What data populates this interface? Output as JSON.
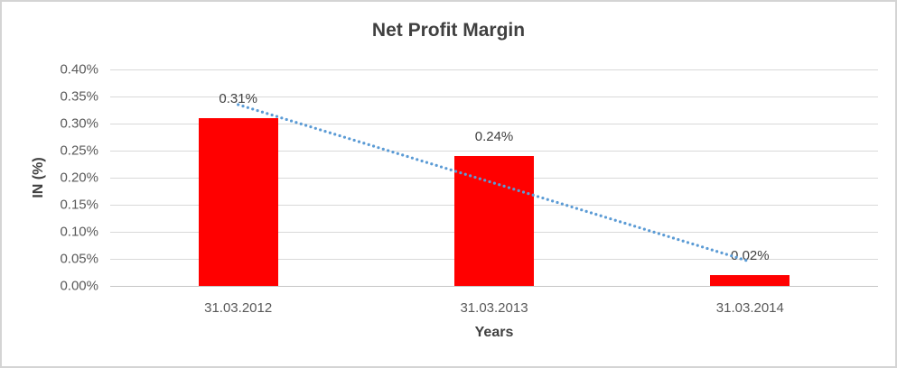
{
  "chart_data": {
    "type": "bar",
    "title": "Net Profit Margin",
    "xlabel": "Years",
    "ylabel": "IN (%)",
    "categories": [
      "31.03.2012",
      "31.03.2013",
      "31.03.2014"
    ],
    "values": [
      0.31,
      0.24,
      0.02
    ],
    "data_labels": [
      "0.31%",
      "0.24%",
      "0.02%"
    ],
    "ylim": [
      0,
      0.4
    ],
    "ytick_step": 0.05,
    "ytick_labels": [
      "0.00%",
      "0.05%",
      "0.10%",
      "0.15%",
      "0.20%",
      "0.25%",
      "0.30%",
      "0.35%",
      "0.40%"
    ],
    "grid": true,
    "legend": "none",
    "bar_color": "#FF0000",
    "trendline": {
      "type": "linear",
      "style": "dotted",
      "color": "#5B9BD5",
      "start_value": 0.335,
      "end_value": 0.045
    }
  },
  "colors": {
    "title_text": "#404040",
    "axis_text": "#595959",
    "data_label_text": "#404040",
    "gridline": "#D9D9D9",
    "border": "#D4D4D4",
    "background": "#FFFFFF"
  }
}
